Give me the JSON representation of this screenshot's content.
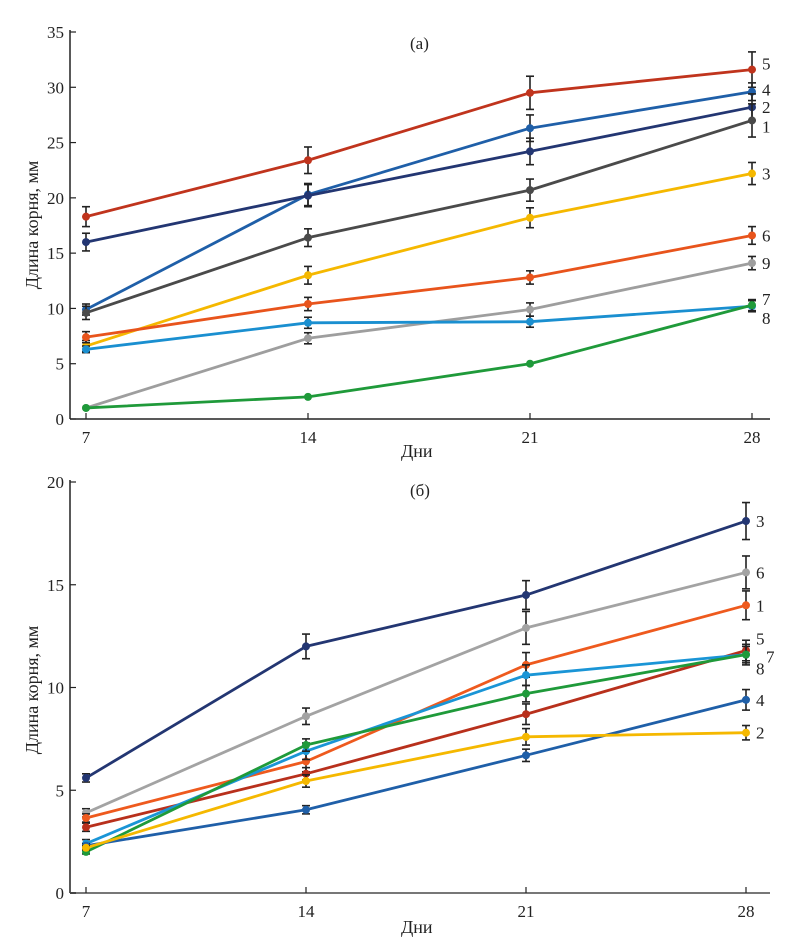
{
  "chart_data": [
    {
      "type": "line",
      "panel_label": "(a)",
      "xlabel": "Дни",
      "ylabel": "Длина корня, мм",
      "x": [
        7,
        14,
        21,
        28
      ],
      "xticks": [
        "7",
        "14",
        "21",
        "28"
      ],
      "ylim": [
        0,
        35
      ],
      "yticks": [
        "0",
        "5",
        "10",
        "15",
        "20",
        "25",
        "30",
        "35"
      ],
      "ytick_values": [
        0,
        5,
        10,
        15,
        20,
        25,
        30,
        35
      ],
      "grid": false,
      "legend": "inline-right",
      "series": [
        {
          "name": "5",
          "color": "#c0341d",
          "values": [
            18.3,
            23.4,
            29.5,
            31.6
          ],
          "errors": [
            0.9,
            1.2,
            1.5,
            1.6
          ]
        },
        {
          "name": "4",
          "color": "#1f5fa8",
          "values": [
            9.9,
            20.3,
            26.3,
            29.6
          ],
          "errors": [
            0.5,
            1.0,
            1.2,
            0.8
          ]
        },
        {
          "name": "2",
          "color": "#233672",
          "values": [
            16.0,
            20.2,
            24.2,
            28.2
          ],
          "errors": [
            0.8,
            1.0,
            1.2,
            1.2
          ]
        },
        {
          "name": "1",
          "color": "#4a4a4a",
          "values": [
            9.6,
            16.4,
            20.7,
            27.0
          ],
          "errors": [
            0.6,
            0.8,
            1.0,
            1.5
          ]
        },
        {
          "name": "3",
          "color": "#f5b800",
          "values": [
            6.6,
            13.0,
            18.2,
            22.2
          ],
          "errors": [
            0.5,
            0.8,
            0.9,
            1.0
          ]
        },
        {
          "name": "6",
          "color": "#e8541c",
          "values": [
            7.4,
            10.4,
            12.8,
            16.6
          ],
          "errors": [
            0.5,
            0.6,
            0.6,
            0.8
          ]
        },
        {
          "name": "9",
          "color": "#9e9e9e",
          "values": [
            1.0,
            7.3,
            9.9,
            14.1
          ],
          "errors": [
            0.0,
            0.5,
            0.6,
            0.6
          ]
        },
        {
          "name": "8",
          "color": "#1a8fd0",
          "values": [
            6.3,
            8.7,
            8.8,
            10.2
          ],
          "errors": [
            0.3,
            0.5,
            0.5,
            0.5
          ]
        },
        {
          "name": "7",
          "color": "#1f9a3a",
          "values": [
            1.0,
            2.0,
            5.0,
            10.3
          ],
          "errors": [
            0.0,
            0.0,
            0.0,
            0.5
          ]
        }
      ]
    },
    {
      "type": "line",
      "panel_label": "(б)",
      "xlabel": "Дни",
      "ylabel": "Длина корня, мм",
      "x": [
        7,
        14,
        21,
        28
      ],
      "xticks": [
        "7",
        "14",
        "21",
        "28"
      ],
      "ylim": [
        0,
        20
      ],
      "yticks": [
        "0",
        "5",
        "10",
        "15",
        "20"
      ],
      "ytick_values": [
        0,
        5,
        10,
        15,
        20
      ],
      "grid": false,
      "legend": "inline-right",
      "series": [
        {
          "name": "3",
          "color": "#233672",
          "values": [
            5.6,
            12.0,
            14.5,
            18.1
          ],
          "errors": [
            0.2,
            0.6,
            0.7,
            0.9
          ]
        },
        {
          "name": "6",
          "color": "#a3a3a3",
          "values": [
            3.9,
            8.6,
            12.9,
            15.6
          ],
          "errors": [
            0.2,
            0.4,
            0.8,
            0.8
          ]
        },
        {
          "name": "1",
          "color": "#ee5a1e",
          "values": [
            3.65,
            6.4,
            11.1,
            14.0
          ],
          "errors": [
            0.2,
            0.5,
            0.6,
            0.7
          ]
        },
        {
          "name": "5",
          "color": "#b8301c",
          "values": [
            3.2,
            5.8,
            8.7,
            11.8
          ],
          "errors": [
            0.2,
            0.3,
            0.5,
            0.5
          ]
        },
        {
          "name": "7",
          "color": "#1a95d6",
          "values": [
            2.4,
            6.9,
            10.6,
            11.6
          ],
          "errors": [
            0.2,
            0.4,
            0.5,
            0.5
          ]
        },
        {
          "name": "8",
          "color": "#1f9a3a",
          "values": [
            2.0,
            7.2,
            9.7,
            11.6
          ],
          "errors": [
            0.1,
            0.3,
            0.4,
            0.4
          ]
        },
        {
          "name": "4",
          "color": "#1f5fa8",
          "values": [
            2.3,
            4.05,
            6.7,
            9.4
          ],
          "errors": [
            0.1,
            0.2,
            0.3,
            0.5
          ]
        },
        {
          "name": "2",
          "color": "#f5b800",
          "values": [
            2.2,
            5.45,
            7.6,
            7.8
          ],
          "errors": [
            0.1,
            0.3,
            0.4,
            0.35
          ]
        }
      ]
    }
  ]
}
